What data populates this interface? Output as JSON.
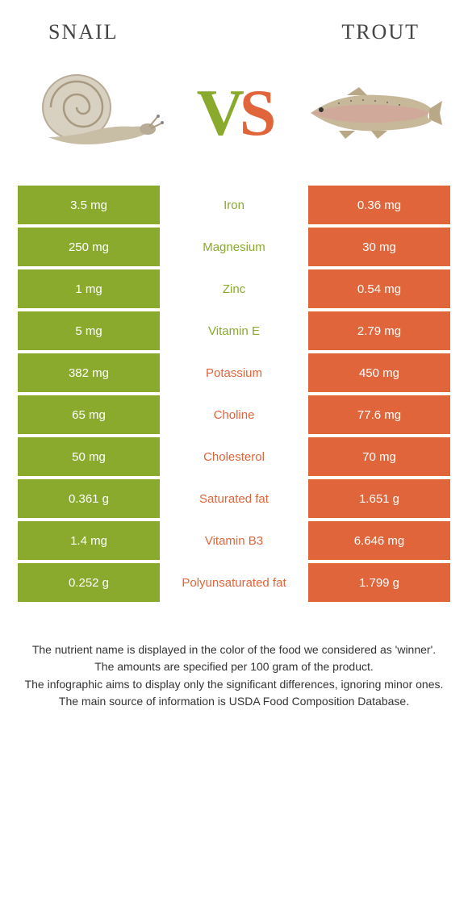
{
  "colors": {
    "green": "#8aaa2e",
    "orange": "#e0653a",
    "white": "#ffffff"
  },
  "header": {
    "left": "Snail",
    "right": "Trout"
  },
  "vs": {
    "v": "V",
    "s": "S"
  },
  "rows": [
    {
      "left": "3.5 mg",
      "mid": "Iron",
      "right": "0.36 mg",
      "winner": "left"
    },
    {
      "left": "250 mg",
      "mid": "Magnesium",
      "right": "30 mg",
      "winner": "left"
    },
    {
      "left": "1 mg",
      "mid": "Zinc",
      "right": "0.54 mg",
      "winner": "left"
    },
    {
      "left": "5 mg",
      "mid": "Vitamin E",
      "right": "2.79 mg",
      "winner": "left"
    },
    {
      "left": "382 mg",
      "mid": "Potassium",
      "right": "450 mg",
      "winner": "right"
    },
    {
      "left": "65 mg",
      "mid": "Choline",
      "right": "77.6 mg",
      "winner": "right"
    },
    {
      "left": "50 mg",
      "mid": "Cholesterol",
      "right": "70 mg",
      "winner": "right"
    },
    {
      "left": "0.361 g",
      "mid": "Saturated fat",
      "right": "1.651 g",
      "winner": "right"
    },
    {
      "left": "1.4 mg",
      "mid": "Vitamin B3",
      "right": "6.646 mg",
      "winner": "right"
    },
    {
      "left": "0.252 g",
      "mid": "Polyunsaturated fat",
      "right": "1.799 g",
      "winner": "right"
    }
  ],
  "footer": [
    "The nutrient name is displayed in the color of the food we considered as 'winner'.",
    "The amounts are specified per 100 gram of the product.",
    "The infographic aims to display only the significant differences, ignoring minor ones.",
    "The main source of information is USDA Food Composition Database."
  ]
}
